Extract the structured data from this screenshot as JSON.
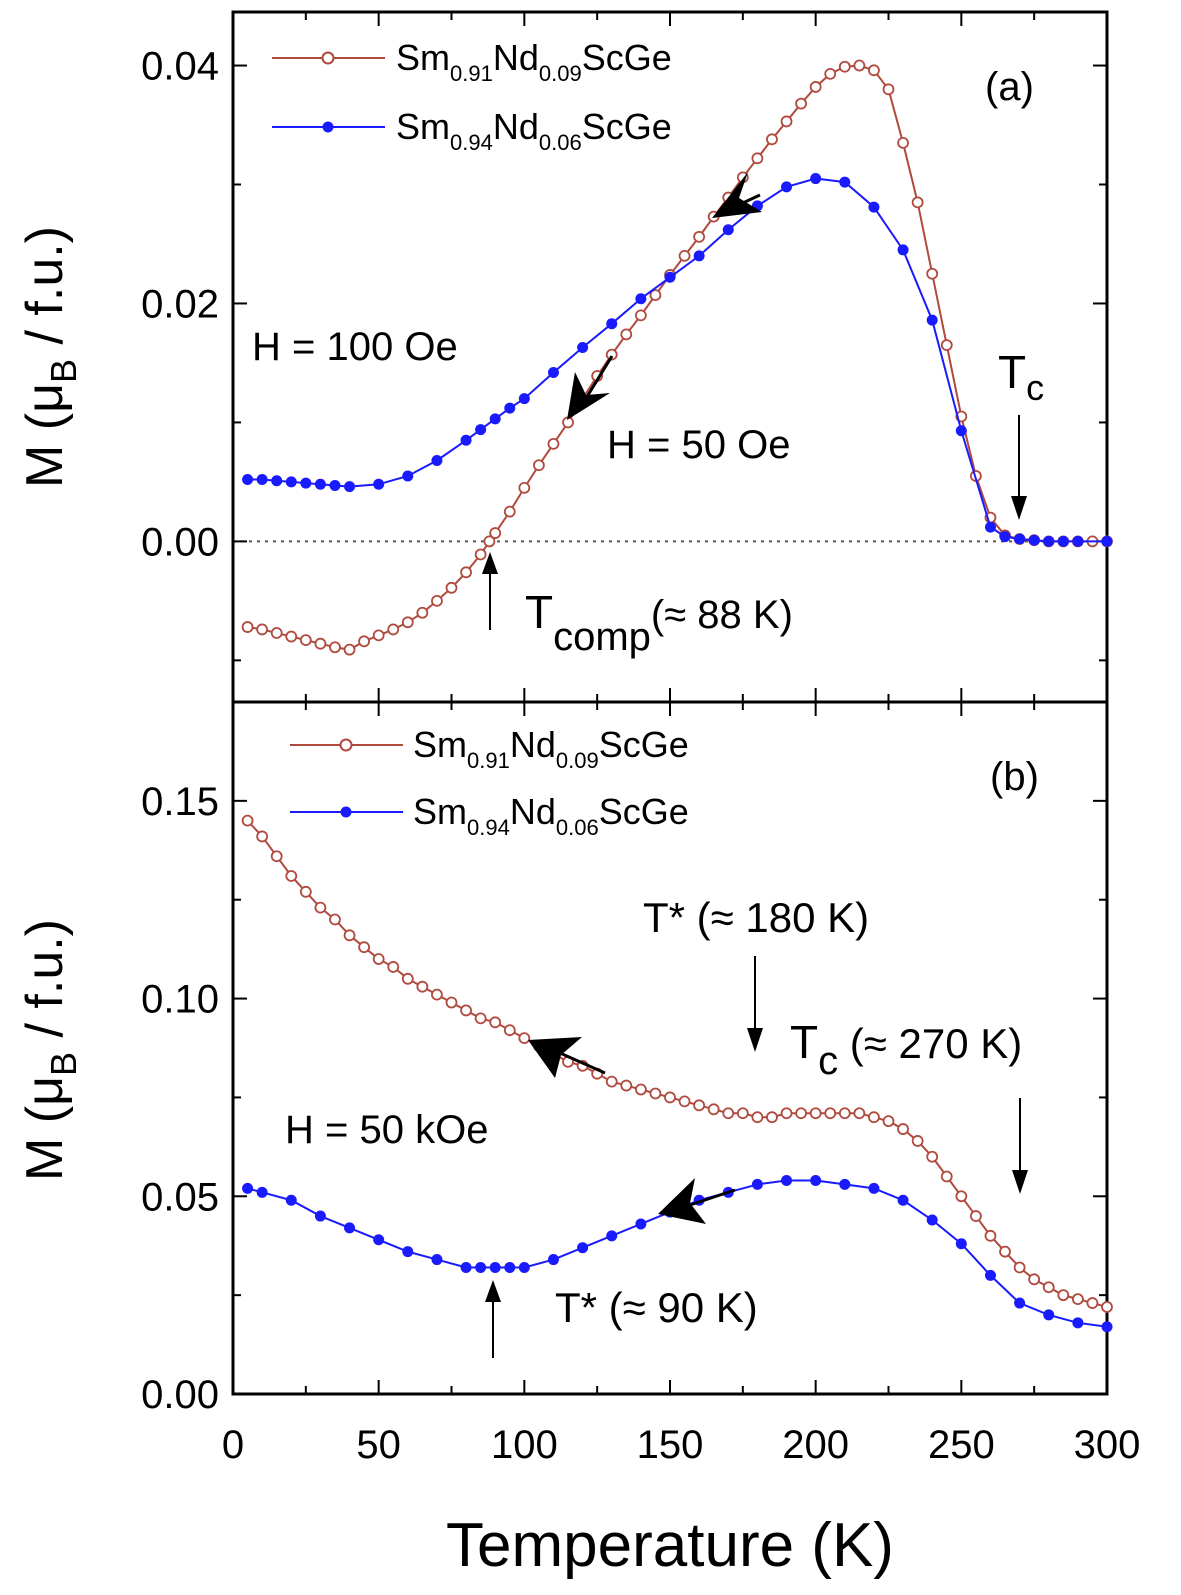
{
  "colors": {
    "series_a": "#b04a3f",
    "series_b": "#1a1aff",
    "axis": "#000000"
  },
  "shared_x": {
    "label": "Temperature (K)",
    "xlim": [
      0,
      300
    ],
    "ticks": [
      "0",
      "50",
      "100",
      "150",
      "200",
      "250",
      "300"
    ]
  },
  "chart_data": [
    {
      "type": "line",
      "panel": "(a)",
      "ylabel": {
        "main": "M (μ",
        "sub": "B",
        "tail": " / f.u.)"
      },
      "ylim": [
        -0.0135,
        0.0445
      ],
      "yticks": [
        "0.00",
        "0.02",
        "0.04"
      ],
      "legend_position": "top-left",
      "series": [
        {
          "name": {
            "base": "Sm",
            "s1": "0.91",
            "mid": "Nd",
            "s2": "0.09",
            "tail": "ScGe"
          },
          "marker": "open-circle",
          "x": [
            5,
            10,
            15,
            20,
            25,
            30,
            35,
            40,
            45,
            50,
            55,
            60,
            65,
            70,
            75,
            80,
            85,
            88,
            90,
            95,
            100,
            105,
            110,
            115,
            120,
            125,
            130,
            135,
            140,
            145,
            150,
            155,
            160,
            165,
            170,
            175,
            180,
            185,
            190,
            195,
            200,
            205,
            210,
            215,
            220,
            225,
            230,
            235,
            240,
            245,
            250,
            255,
            260,
            265,
            270,
            275,
            280,
            285,
            290,
            295,
            300
          ],
          "y": [
            -0.0072,
            -0.0074,
            -0.0077,
            -0.008,
            -0.0083,
            -0.0086,
            -0.0089,
            -0.0091,
            -0.0084,
            -0.0079,
            -0.0074,
            -0.0068,
            -0.006,
            -0.005,
            -0.0039,
            -0.0026,
            -0.0011,
            0.0,
            0.0007,
            0.0025,
            0.0045,
            0.0064,
            0.0082,
            0.01,
            0.012,
            0.0139,
            0.0157,
            0.0174,
            0.019,
            0.0207,
            0.0224,
            0.024,
            0.0256,
            0.0273,
            0.0289,
            0.0306,
            0.0322,
            0.0338,
            0.0353,
            0.0368,
            0.0382,
            0.0393,
            0.0399,
            0.04,
            0.0396,
            0.038,
            0.0335,
            0.0285,
            0.0225,
            0.0165,
            0.0105,
            0.0055,
            0.002,
            0.0005,
            0.0002,
            0.0001,
            0.0,
            0.0,
            0.0,
            0.0,
            0.0
          ]
        },
        {
          "name": {
            "base": "Sm",
            "s1": "0.94",
            "mid": "Nd",
            "s2": "0.06",
            "tail": "ScGe"
          },
          "marker": "filled-circle",
          "x": [
            5,
            10,
            15,
            20,
            25,
            30,
            35,
            40,
            50,
            60,
            70,
            80,
            85,
            90,
            95,
            100,
            110,
            120,
            130,
            140,
            150,
            160,
            170,
            180,
            190,
            200,
            210,
            220,
            230,
            240,
            250,
            260,
            265,
            270,
            275,
            280,
            285,
            290,
            300
          ],
          "y": [
            0.0052,
            0.0052,
            0.0051,
            0.005,
            0.0049,
            0.0048,
            0.0047,
            0.0046,
            0.0048,
            0.0055,
            0.0068,
            0.0085,
            0.0094,
            0.0103,
            0.0112,
            0.012,
            0.0142,
            0.0163,
            0.0183,
            0.0204,
            0.0222,
            0.024,
            0.0262,
            0.0282,
            0.0298,
            0.0305,
            0.0302,
            0.0281,
            0.0245,
            0.0186,
            0.0093,
            0.0012,
            0.0004,
            0.0002,
            0.0001,
            0.0,
            0.0,
            0.0,
            0.0
          ]
        }
      ],
      "annotations": {
        "panel_label": "(a)",
        "field_100": "H = 100 Oe",
        "field_50": "H = 50 Oe",
        "tc": {
          "main": "T",
          "sub": "c"
        },
        "tcomp": {
          "main": "T",
          "sub": "comp",
          "tail": "(≈ 88 K)"
        }
      }
    },
    {
      "type": "line",
      "panel": "(b)",
      "ylabel": {
        "main": "M (μ",
        "sub": "B",
        "tail": " / f.u.)"
      },
      "ylim": [
        0.0,
        0.175
      ],
      "yticks": [
        "0.00",
        "0.05",
        "0.10",
        "0.15"
      ],
      "legend_position": "top-left",
      "series": [
        {
          "name": {
            "base": "Sm",
            "s1": "0.91",
            "mid": "Nd",
            "s2": "0.09",
            "tail": "ScGe"
          },
          "marker": "open-circle",
          "x": [
            5,
            10,
            15,
            20,
            25,
            30,
            35,
            40,
            45,
            50,
            55,
            60,
            65,
            70,
            75,
            80,
            85,
            90,
            95,
            100,
            105,
            110,
            115,
            120,
            125,
            130,
            135,
            140,
            145,
            150,
            155,
            160,
            165,
            170,
            175,
            180,
            185,
            190,
            195,
            200,
            205,
            210,
            215,
            220,
            225,
            230,
            235,
            240,
            245,
            250,
            255,
            260,
            265,
            270,
            275,
            280,
            285,
            290,
            295,
            300
          ],
          "y": [
            0.145,
            0.141,
            0.136,
            0.131,
            0.127,
            0.123,
            0.12,
            0.116,
            0.113,
            0.11,
            0.108,
            0.105,
            0.103,
            0.101,
            0.099,
            0.097,
            0.095,
            0.094,
            0.092,
            0.09,
            0.088,
            0.086,
            0.084,
            0.083,
            0.081,
            0.079,
            0.078,
            0.077,
            0.076,
            0.075,
            0.074,
            0.073,
            0.072,
            0.071,
            0.071,
            0.07,
            0.07,
            0.071,
            0.071,
            0.071,
            0.071,
            0.071,
            0.071,
            0.07,
            0.069,
            0.067,
            0.064,
            0.06,
            0.055,
            0.05,
            0.045,
            0.04,
            0.036,
            0.032,
            0.029,
            0.027,
            0.025,
            0.024,
            0.023,
            0.022
          ]
        },
        {
          "name": {
            "base": "Sm",
            "s1": "0.94",
            "mid": "Nd",
            "s2": "0.06",
            "tail": "ScGe"
          },
          "marker": "filled-circle",
          "x": [
            5,
            10,
            20,
            30,
            40,
            50,
            60,
            70,
            80,
            85,
            90,
            95,
            100,
            110,
            120,
            130,
            140,
            150,
            160,
            170,
            180,
            190,
            200,
            210,
            220,
            230,
            240,
            250,
            260,
            270,
            280,
            290,
            300
          ],
          "y": [
            0.052,
            0.051,
            0.049,
            0.045,
            0.042,
            0.039,
            0.036,
            0.034,
            0.032,
            0.032,
            0.032,
            0.032,
            0.032,
            0.034,
            0.037,
            0.04,
            0.043,
            0.046,
            0.049,
            0.051,
            0.053,
            0.054,
            0.054,
            0.053,
            0.052,
            0.049,
            0.044,
            0.038,
            0.03,
            0.023,
            0.02,
            0.018,
            0.017
          ]
        }
      ],
      "annotations": {
        "panel_label": "(b)",
        "field_50k": "H = 50 kOe",
        "tstar_180": "T* (≈ 180 K)",
        "tc": {
          "main": "T",
          "sub": "c",
          "tail": " (≈ 270 K)"
        },
        "tstar_90": "T* (≈ 90 K)"
      }
    }
  ]
}
